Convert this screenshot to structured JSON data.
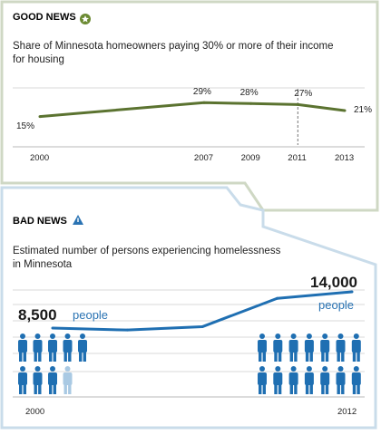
{
  "colors": {
    "good_panel_border": "#cfd8c4",
    "good_accent": "#6b8a32",
    "good_line": "#5b7330",
    "bad_panel_border": "#c9dcea",
    "bad_accent": "#2a73b3",
    "bad_line": "#1f6fb2",
    "grid": "#d8d8d8",
    "person_dark": "#1f6fb2",
    "person_light": "#a9c9e3"
  },
  "icons": {
    "good": "star-badge-icon",
    "bad": "warning-triangle-icon",
    "person": "person-icon"
  },
  "chart_data": [
    {
      "type": "line",
      "section_label": "GOOD NEWS",
      "title": "Share of Minnesota homeowners paying 30% or more of their income for housing",
      "x_ticks": [
        "2000",
        "2007",
        "2009",
        "2011",
        "2013"
      ],
      "x": [
        2000,
        2007,
        2009,
        2011,
        2013
      ],
      "values": [
        15,
        29,
        28,
        27,
        21
      ],
      "data_labels": [
        "15%",
        "29%",
        "28%",
        "27%",
        "21%"
      ],
      "reference_line_year": 2011,
      "grid": false
    },
    {
      "type": "line",
      "section_label": "BAD NEWS",
      "title": "Estimated number of persons experiencing homelessness in Minnesota",
      "x_ticks": [
        "2000",
        "2012"
      ],
      "x": [
        2000,
        2003,
        2006,
        2009,
        2012
      ],
      "values": [
        8500,
        8200,
        8700,
        13000,
        14000
      ],
      "callouts": [
        {
          "value": "8,500",
          "unit": "people"
        },
        {
          "value": "14,000",
          "unit": "people"
        }
      ],
      "pictogram": {
        "units_start": 8.5,
        "units_end": 14
      },
      "grid": true
    }
  ]
}
